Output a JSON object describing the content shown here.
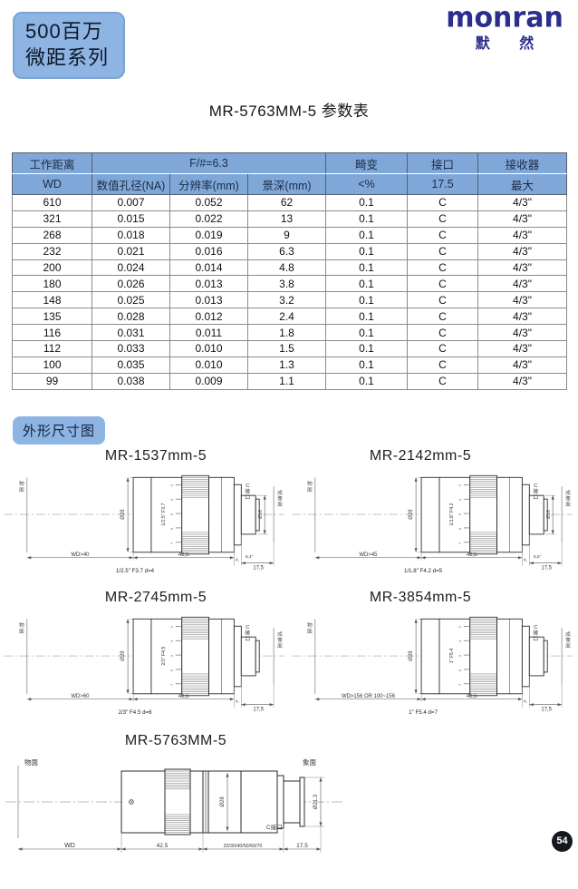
{
  "header": {
    "badge_line1": "500百万",
    "badge_line2": "微距系列",
    "logo_text": "monran",
    "logo_subtext": "默 然",
    "title": "MR-5763MM-5 参数表"
  },
  "section": {
    "badge": "外形尺寸图"
  },
  "footer": {
    "page_number": "54"
  },
  "colors": {
    "badge_blue": "#8DB4E2",
    "table_header_blue": "#7FA8D9",
    "logo_blue": "#2B2E8C",
    "page_badge_black": "#15181C"
  },
  "table": {
    "header_row1": [
      "工作距离",
      "F/#=6.3",
      "畸变",
      "接口",
      "接收器"
    ],
    "header_row2": [
      "WD",
      "数值孔径(NA)",
      "分辨率(mm)",
      "景深(mm)",
      "<%",
      "17.5",
      "最大"
    ],
    "rows": [
      [
        "610",
        "0.007",
        "0.052",
        "62",
        "0.1",
        "C",
        "4/3\""
      ],
      [
        "321",
        "0.015",
        "0.022",
        "13",
        "0.1",
        "C",
        "4/3\""
      ],
      [
        "268",
        "0.018",
        "0.019",
        "9",
        "0.1",
        "C",
        "4/3\""
      ],
      [
        "232",
        "0.021",
        "0.016",
        "6.3",
        "0.1",
        "C",
        "4/3\""
      ],
      [
        "200",
        "0.024",
        "0.014",
        "4.8",
        "0.1",
        "C",
        "4/3\""
      ],
      [
        "180",
        "0.026",
        "0.013",
        "3.8",
        "0.1",
        "C",
        "4/3\""
      ],
      [
        "148",
        "0.025",
        "0.013",
        "3.2",
        "0.1",
        "C",
        "4/3\""
      ],
      [
        "135",
        "0.028",
        "0.012",
        "2.4",
        "0.1",
        "C",
        "4/3\""
      ],
      [
        "116",
        "0.031",
        "0.011",
        "1.8",
        "0.1",
        "C",
        "4/3\""
      ],
      [
        "112",
        "0.033",
        "0.010",
        "1.5",
        "0.1",
        "C",
        "4/3\""
      ],
      [
        "100",
        "0.035",
        "0.010",
        "1.3",
        "0.1",
        "C",
        "4/3\""
      ],
      [
        "99",
        "0.038",
        "0.009",
        "1.1",
        "0.1",
        "C",
        "4/3\""
      ]
    ]
  },
  "diagrams": [
    {
      "title": "MR-1537mm-5",
      "type": "small",
      "object_plane": "物面",
      "image_plane": "成像面",
      "mount_label": "C接口",
      "wd": "WD>40",
      "body_dim": "42,5",
      "step_dim": "4,",
      "angle_dim": "6,4°",
      "flange_dim": "17,5",
      "body_dia": "Ø28",
      "mount_dia": "Ø16",
      "barrel_label": "1/2.5\" F3.7",
      "caption": "1/2.5\" F3.7  d=4",
      "scale_marks": [
        "3",
        "4",
        "5",
        "6",
        "7"
      ]
    },
    {
      "title": "MR-2142mm-5",
      "type": "small",
      "object_plane": "物面",
      "image_plane": "成像面",
      "mount_label": "C接口",
      "wd": "WD>45",
      "body_dim": "42,5",
      "step_dim": "4,",
      "angle_dim": "5,5°",
      "flange_dim": "17,5",
      "body_dia": "Ø28",
      "mount_dia": "Ø16",
      "barrel_label": "1/1.8\" F4.2",
      "caption": "1/1.8\" F4.2  d=5",
      "scale_marks": [
        "3",
        "4",
        "5",
        "6",
        "7"
      ]
    },
    {
      "title": "MR-2745mm-5",
      "type": "small",
      "object_plane": "物面",
      "image_plane": "成像面",
      "mount_label": "C接口",
      "wd": "WD>60",
      "body_dim": "42,5",
      "step_dim": "4,",
      "angle_dim": "",
      "flange_dim": "17,5",
      "body_dia": "Ø28",
      "mount_dia": "",
      "barrel_label": "2/3\" F4.5",
      "caption": "2/3\" F4.5  d=6",
      "scale_marks": [
        "3",
        "4",
        "5",
        "6",
        "7"
      ]
    },
    {
      "title": "MR-3854mm-5",
      "type": "small",
      "object_plane": "物面",
      "image_plane": "成像面",
      "mount_label": "C接口",
      "wd": "WD>156 OR 100~156",
      "body_dim": "42,5",
      "step_dim": "4,",
      "angle_dim": "",
      "flange_dim": "17,5",
      "body_dia": "Ø28",
      "mount_dia": "",
      "barrel_label": "1\" F5.4",
      "caption": "1\" F5.4  d=7",
      "scale_marks": [
        "3",
        "4",
        "5",
        "6",
        "7"
      ]
    },
    {
      "title": "MR-5763MM-5",
      "type": "bottom",
      "object_plane": "物面",
      "image_plane": "象面",
      "mount_label": "C接口",
      "wd": "WD",
      "body_dim": "42.5",
      "ext_dim": "20/30/40/50/60/70",
      "flange_dim": "17.5",
      "body_dia": "Ø28",
      "image_dia": "Ø21.3"
    }
  ]
}
